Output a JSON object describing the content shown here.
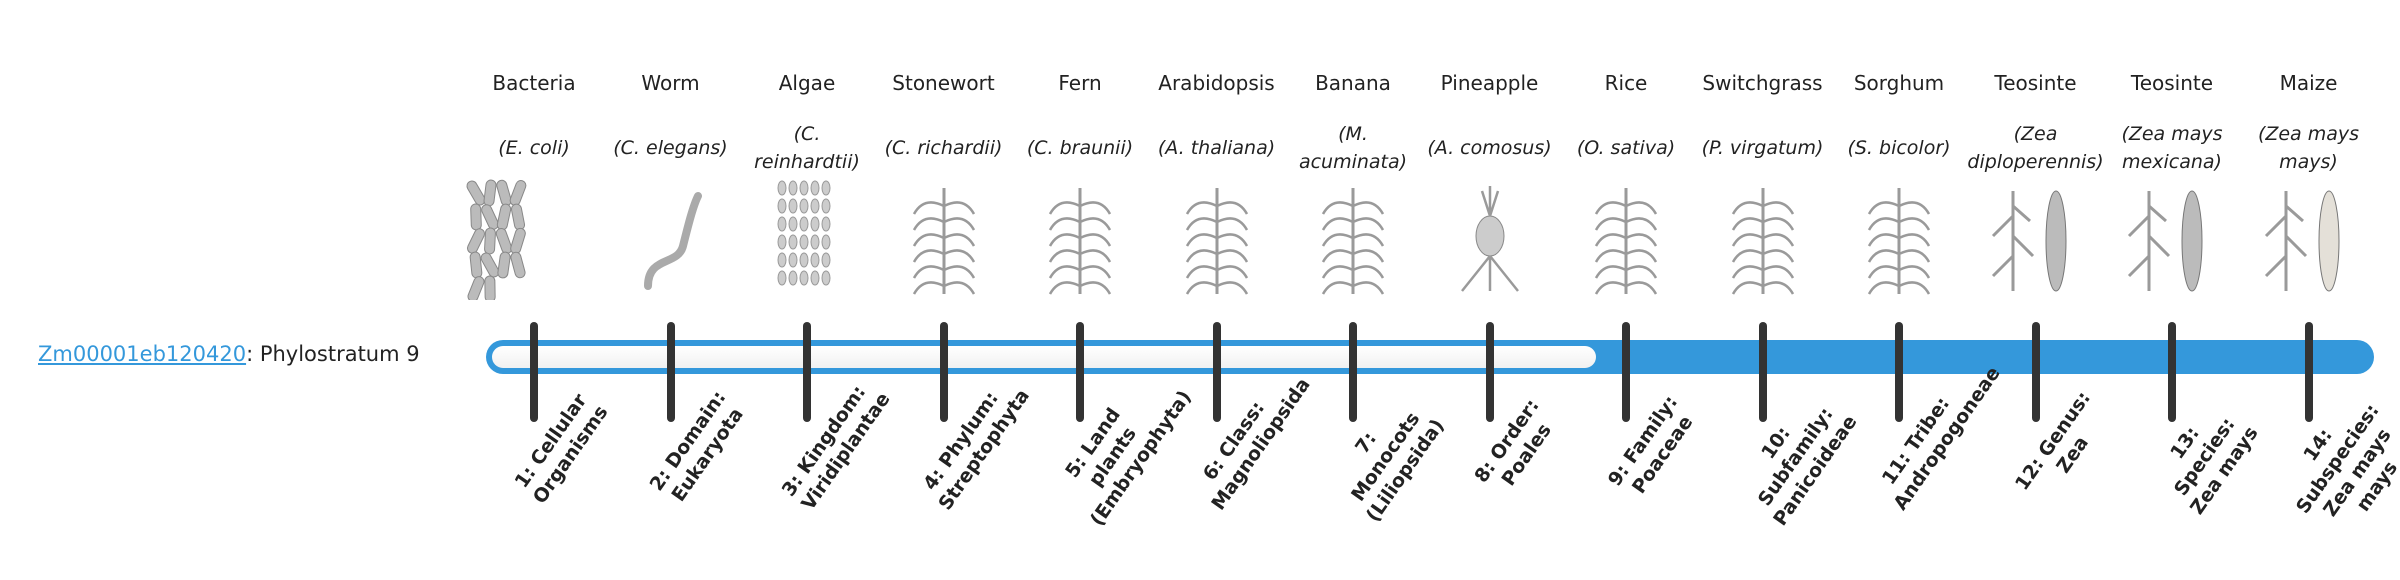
{
  "gene": {
    "id": "Zm00001eb120420",
    "suffix": ": Phylostratum 9",
    "phylostratum": 9
  },
  "colors": {
    "accent": "#3498db",
    "tick": "#333333",
    "track": "#f4f4f4"
  },
  "strata": [
    {
      "name": "Bacteria",
      "species": "(E. coli)",
      "label": "1: Cellular Organisms",
      "icon": "bacteria-icon"
    },
    {
      "name": "Worm",
      "species": "(C. elegans)",
      "label": "2: Domain: Eukaryota",
      "icon": "worm-icon"
    },
    {
      "name": "Algae",
      "species": "(C. reinhardtii)",
      "label": "3: Kingdom: Viridiplantae",
      "icon": "algae-icon"
    },
    {
      "name": "Stonewort",
      "species": "(C. richardii)",
      "label": "4: Phylum: Streptophyta",
      "icon": "stonewort-icon"
    },
    {
      "name": "Fern",
      "species": "(C. braunii)",
      "label": "5: Land plants (Embryophyta)",
      "icon": "fern-icon"
    },
    {
      "name": "Arabidopsis",
      "species": "(A. thaliana)",
      "label": "6: Class: Magnoliopsida",
      "icon": "arabidopsis-icon"
    },
    {
      "name": "Banana",
      "species": "(M. acuminata)",
      "label": "7: Monocots (Liliopsida)",
      "icon": "banana-icon"
    },
    {
      "name": "Pineapple",
      "species": "(A. comosus)",
      "label": "8: Order: Poales",
      "icon": "pineapple-icon"
    },
    {
      "name": "Rice",
      "species": "(O. sativa)",
      "label": "9: Family: Poaceae",
      "icon": "rice-icon"
    },
    {
      "name": "Switchgrass",
      "species": "(P. virgatum)",
      "label": "10: Subfamily: Panicoideae",
      "icon": "switchgrass-icon"
    },
    {
      "name": "Sorghum",
      "species": "(S. bicolor)",
      "label": "11: Tribe: Andropogoneae",
      "icon": "sorghum-icon"
    },
    {
      "name": "Teosinte",
      "species": "(Zea diploperennis)",
      "label": "12: Genus: Zea",
      "icon": "teosinte-icon"
    },
    {
      "name": "Teosinte",
      "species": "(Zea mays mexicana)",
      "label": "13: Species: Zea mays",
      "icon": "teosinte-icon"
    },
    {
      "name": "Maize",
      "species": "(Zea mays mays)",
      "label": "14: Subspecies: Zea mays mays",
      "icon": "maize-icon"
    }
  ]
}
